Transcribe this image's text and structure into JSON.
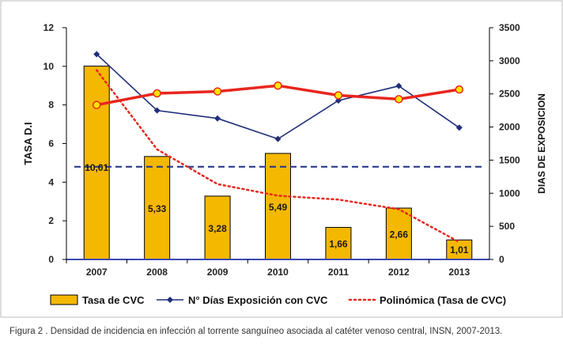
{
  "chart_data": {
    "type": "bar",
    "categories": [
      "2007",
      "2008",
      "2009",
      "2010",
      "2011",
      "2012",
      "2013"
    ],
    "series": [
      {
        "name": "Tasa de CVC",
        "type": "bar",
        "axis": "left",
        "values": [
          10.01,
          5.33,
          3.28,
          5.49,
          1.66,
          2.66,
          1.01
        ],
        "labels": [
          "10,01",
          "5,33",
          "3,28",
          "5,49",
          "1,66",
          "2,66",
          "1,01"
        ],
        "color": "#F5B800"
      },
      {
        "name": "N° Días Exposición con CVC",
        "type": "line",
        "axis": "right",
        "values": [
          3100,
          2250,
          2130,
          1820,
          2400,
          2620,
          1990
        ],
        "color": "#1F2E7A"
      },
      {
        "name": "Polinómica (Tasa de CVC)",
        "type": "trendline",
        "axis": "left",
        "values": [
          9.8,
          5.7,
          3.9,
          3.3,
          3.1,
          2.6,
          0.9
        ],
        "color": "#E8261E"
      }
    ],
    "extra_lines": {
      "red_line_values": [
        8.0,
        8.6,
        8.7,
        9.0,
        8.5,
        8.3,
        8.8
      ],
      "red_line_color": "#E8261E",
      "red_marker_fill": "#FFE600",
      "dashed_reference_value": 4.8,
      "dashed_reference_color": "#2A3A8C",
      "baseline_color": "#3A4AB0"
    },
    "ylabel": "TASA D.I",
    "y2label": "DIAS DE EXPOSICION",
    "ylim": [
      0,
      12
    ],
    "y2lim": [
      0,
      3500
    ],
    "yticks": [
      0,
      2,
      4,
      6,
      8,
      10,
      12
    ],
    "y2ticks": [
      0,
      500,
      1000,
      1500,
      2000,
      2500,
      3000,
      3500
    ],
    "grid": false,
    "legend_position": "bottom"
  },
  "caption": "Figura 2 . Densidad de incidencia en infección al torrente sanguíneo asociada al catéter venoso central, INSN, 2007-2013."
}
